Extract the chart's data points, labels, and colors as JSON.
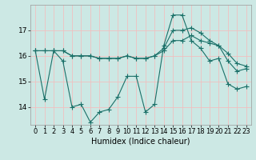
{
  "title": "",
  "xlabel": "Humidex (Indice chaleur)",
  "bg_color": "#cce8e4",
  "grid_color": "#f0c0c0",
  "line_color": "#1a7068",
  "marker": "+",
  "markersize": 4,
  "linewidth": 0.8,
  "x": [
    0,
    1,
    2,
    3,
    4,
    5,
    6,
    7,
    8,
    9,
    10,
    11,
    12,
    13,
    14,
    15,
    16,
    17,
    18,
    19,
    20,
    21,
    22,
    23
  ],
  "series": [
    [
      16.2,
      14.3,
      16.2,
      15.8,
      14.0,
      14.1,
      13.4,
      13.8,
      13.9,
      14.4,
      15.2,
      15.2,
      13.8,
      14.1,
      16.4,
      17.6,
      17.6,
      16.6,
      16.3,
      15.8,
      15.9,
      14.9,
      14.7,
      14.8
    ],
    [
      16.2,
      16.2,
      16.2,
      16.2,
      16.0,
      16.0,
      16.0,
      15.9,
      15.9,
      15.9,
      16.0,
      15.9,
      15.9,
      16.0,
      16.2,
      16.6,
      16.6,
      16.8,
      16.6,
      16.5,
      16.4,
      16.1,
      15.7,
      15.6
    ],
    [
      16.2,
      16.2,
      16.2,
      16.2,
      16.0,
      16.0,
      16.0,
      15.9,
      15.9,
      15.9,
      16.0,
      15.9,
      15.9,
      16.0,
      16.3,
      17.0,
      17.0,
      17.1,
      16.9,
      16.6,
      16.4,
      15.8,
      15.4,
      15.5
    ]
  ],
  "yticks": [
    14,
    15,
    16,
    17
  ],
  "ylim": [
    13.3,
    18.0
  ],
  "xlim": [
    -0.5,
    23.5
  ],
  "xtick_labels": [
    "0",
    "1",
    "2",
    "3",
    "4",
    "5",
    "6",
    "7",
    "8",
    "9",
    "10",
    "11",
    "12",
    "13",
    "14",
    "15",
    "16",
    "17",
    "18",
    "19",
    "20",
    "21",
    "22",
    "23"
  ],
  "font_size": 6.5
}
